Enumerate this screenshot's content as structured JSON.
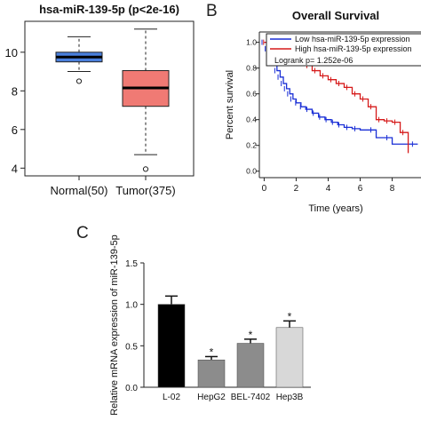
{
  "panels": {
    "b_letter": "B",
    "c_letter": "C"
  },
  "chart_data": [
    {
      "type": "box",
      "title": "hsa-miR-139-5p (p<2e-16)",
      "categories": [
        "Normal(50)",
        "Tumor(375)"
      ],
      "ylim": [
        3.6,
        11.6
      ],
      "yticks": [
        4,
        6,
        8,
        10
      ],
      "boxes": [
        {
          "name": "Normal(50)",
          "color": "#4a7fdc",
          "whisker_low": 9.0,
          "q1": 9.5,
          "median": 9.75,
          "q3": 10.0,
          "whisker_high": 10.8,
          "outliers": [
            8.5
          ]
        },
        {
          "name": "Tumor(375)",
          "color": "#f07a74",
          "whisker_low": 4.7,
          "q1": 7.2,
          "median": 8.15,
          "q3": 9.05,
          "whisker_high": 11.2,
          "outliers": [
            3.95
          ]
        }
      ]
    },
    {
      "type": "line",
      "subtype": "survival",
      "title": "Overall Survival",
      "xlabel": "Time (years)",
      "ylabel": "Percent survival",
      "xlim": [
        -0.3,
        9.8
      ],
      "ylim": [
        -0.05,
        1.08
      ],
      "xticks": [
        0,
        2,
        4,
        6,
        8
      ],
      "yticks": [
        0.0,
        0.2,
        0.4,
        0.6,
        0.8,
        1.0
      ],
      "legend": [
        "Low hsa-miR-139-5p expression",
        "High hsa-miR-139-5p expression"
      ],
      "annotation": "Logrank p= 1.252e-06",
      "series": [
        {
          "name": "Low hsa-miR-139-5p expression",
          "color": "#1a2fd6",
          "x": [
            0,
            0.2,
            0.4,
            0.6,
            0.8,
            1.0,
            1.2,
            1.4,
            1.6,
            1.8,
            2.0,
            2.3,
            2.6,
            3.0,
            3.4,
            3.8,
            4.2,
            4.6,
            5.0,
            5.5,
            6.0,
            7.0,
            8.0,
            9.6
          ],
          "y": [
            1.0,
            0.95,
            0.9,
            0.84,
            0.78,
            0.73,
            0.68,
            0.64,
            0.6,
            0.56,
            0.53,
            0.5,
            0.48,
            0.45,
            0.42,
            0.4,
            0.38,
            0.36,
            0.34,
            0.33,
            0.32,
            0.26,
            0.21,
            0.21
          ]
        },
        {
          "name": "High hsa-miR-139-5p expression",
          "color": "#d61a1a",
          "x": [
            0,
            0.3,
            0.6,
            1.0,
            1.4,
            1.8,
            2.2,
            2.6,
            3.0,
            3.5,
            4.0,
            4.5,
            5.0,
            5.5,
            6.0,
            6.5,
            7.0,
            7.5,
            8.0,
            8.5,
            9.0
          ],
          "y": [
            1.0,
            0.98,
            0.96,
            0.94,
            0.92,
            0.89,
            0.86,
            0.82,
            0.78,
            0.74,
            0.71,
            0.68,
            0.65,
            0.6,
            0.56,
            0.5,
            0.4,
            0.39,
            0.38,
            0.3,
            0.14
          ]
        }
      ]
    },
    {
      "type": "bar",
      "ylabel": "Relative mRNA expression of miR-139-5p",
      "ylim": [
        0,
        1.5
      ],
      "yticks": [
        "0.0",
        "0.5",
        "1.0",
        "1.5"
      ],
      "categories": [
        "L-02",
        "HepG2",
        "BEL-7402",
        "Hep3B"
      ],
      "values": [
        1.0,
        0.33,
        0.53,
        0.72
      ],
      "errors": [
        0.1,
        0.04,
        0.05,
        0.08
      ],
      "significance": [
        "",
        "*",
        "*",
        "*"
      ],
      "colors": [
        "#000000",
        "#8c8c8c",
        "#8c8c8c",
        "#d8d8d8"
      ]
    }
  ]
}
